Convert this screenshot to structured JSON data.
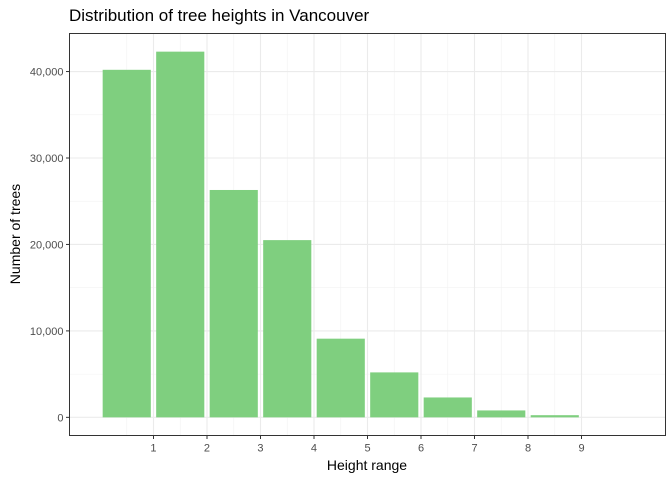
{
  "chart_data": {
    "type": "bar",
    "title": "Distribution of tree heights in Vancouver",
    "xlabel": "Height range",
    "ylabel": "Number of trees",
    "x_tick_labels": [
      "1",
      "2",
      "3",
      "4",
      "5",
      "6",
      "7",
      "8",
      "9"
    ],
    "y_tick_labels": [
      "0",
      "10,000",
      "20,000",
      "30,000",
      "40,000"
    ],
    "y_ticks": [
      0,
      10000,
      20000,
      30000,
      40000
    ],
    "x": [
      0.5,
      1.5,
      2.5,
      3.5,
      4.5,
      5.5,
      6.5,
      7.5,
      8.5
    ],
    "values": [
      40200,
      42300,
      26300,
      20500,
      9100,
      5200,
      2300,
      800,
      250
    ],
    "xlim": [
      -0.57,
      10.57
    ],
    "ylim": [
      -2100,
      44400
    ],
    "grid": true,
    "bar_color": "#7FCF7F"
  }
}
